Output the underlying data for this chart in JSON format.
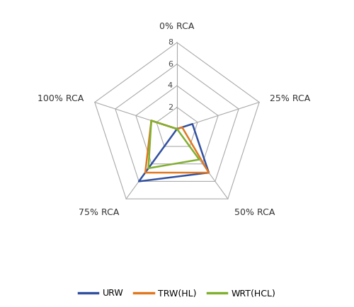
{
  "categories": [
    "0% RCA",
    "25% RCA",
    "50% RCA",
    "75% RCA",
    "100% RCA"
  ],
  "series": [
    {
      "name": "URW",
      "color": "#3050A0",
      "values": [
        0.0,
        1.5,
        5.0,
        6.0,
        0.0
      ]
    },
    {
      "name": "TRW(HL)",
      "color": "#E07820",
      "values": [
        0.0,
        0.5,
        5.0,
        5.0,
        2.5
      ]
    },
    {
      "name": "WRT(HCL)",
      "color": "#80B030",
      "values": [
        0.0,
        0.0,
        3.5,
        4.5,
        2.5
      ]
    }
  ],
  "grid_values": [
    0,
    2,
    4,
    6,
    8
  ],
  "r_max": 8,
  "grid_color": "#aaaaaa",
  "grid_linewidth": 0.8,
  "series_linewidth": 1.8,
  "background_color": "#ffffff",
  "label_fontsize": 9,
  "tick_fontsize": 8,
  "legend_fontsize": 9
}
